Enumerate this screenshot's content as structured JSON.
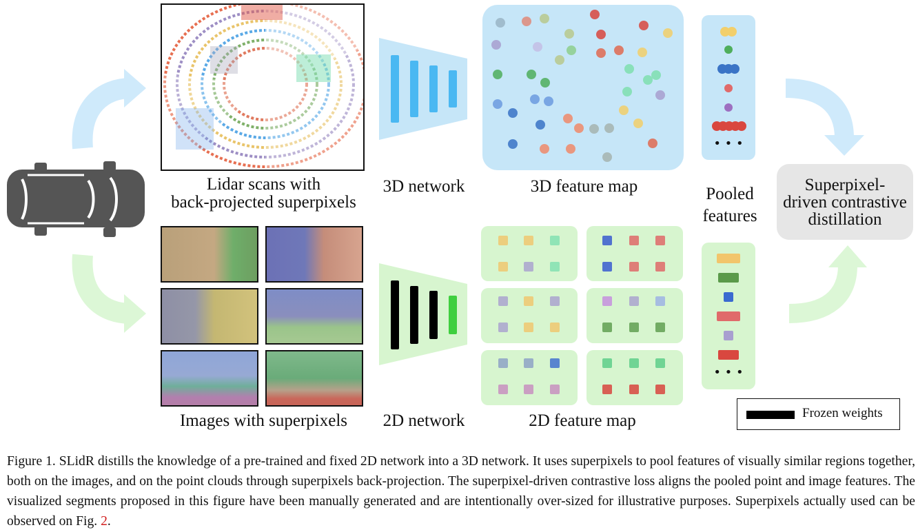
{
  "labels": {
    "lidar": "Lidar scans with\nback-projected superpixels",
    "net3d": "3D network",
    "fmap3d": "3D feature map",
    "pooled": "Pooled\nfeatures",
    "distill": "Superpixel-driven contrastive distillation",
    "images": "Images with superpixels",
    "net2d": "2D network",
    "fmap2d": "2D feature map",
    "legend": "Frozen weights",
    "ellipsis": "• • •"
  },
  "caption": {
    "before": "Figure 1. SLidR distills the knowledge of a pre-trained and fixed 2D network into a 3D network. It uses superpixels to pool features of visually similar regions together, both on the images, and on the point clouds through superpixels back-projection. The superpixel-driven contrastive loss aligns the pooled point and image features. The visualized segments proposed in this figure have been manually generated and are intentionally over-sized for illustrative purposes. Superpixels actually used can be observed on Fig. ",
    "ref": "2",
    "after": "."
  },
  "colors": {
    "blue_bg": "#c6e6f8",
    "green_bg": "#d7f5cf",
    "net3d": "#4ab8f2",
    "net2d_frozen": "#000000",
    "net2d_trainable": "#3fcf3f",
    "distill_bg": "#e6e6e6",
    "car": "#555555"
  }
}
